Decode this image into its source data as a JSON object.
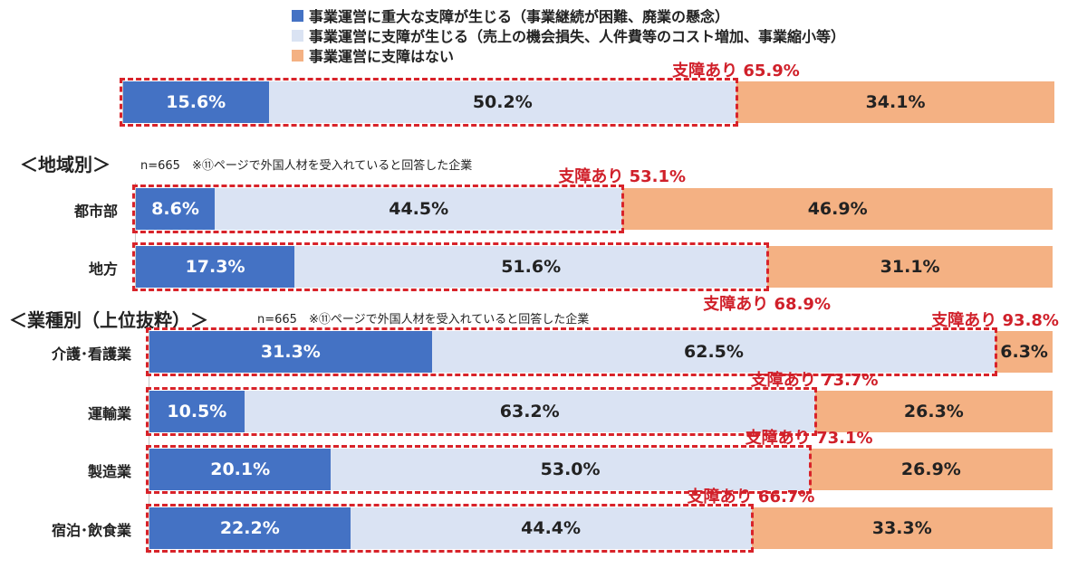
{
  "legend": [
    {
      "label": "事業運営に重大な支障が生じる（事業継続が困難、廃業の懸念）",
      "color": "#4472c4"
    },
    {
      "label": "事業運営に支障が生じる（売上の機会損失、人件費等のコスト増加、事業縮小等）",
      "color": "#dae3f3"
    },
    {
      "label": "事業運営に支障はない",
      "color": "#f4b183"
    }
  ],
  "sections": {
    "region": {
      "title": "＜地域別＞",
      "note": "n=665　※⑪ページで外国人材を受入れていると回答した企業"
    },
    "industry": {
      "title": "＜業種別（上位抜粋）＞",
      "note": "n=665　※⑪ページで外国人材を受入れていると回答した企業"
    }
  },
  "chart_data": {
    "type": "bar",
    "stacked": true,
    "orientation": "horizontal",
    "series_names": [
      "事業運営に重大な支障が生じる（事業継続が困難、廃業の懸念）",
      "事業運営に支障が生じる（売上の機会損失、人件費等のコスト増加、事業縮小等）",
      "事業運営に支障はない"
    ],
    "rows": [
      {
        "label": "",
        "values": [
          15.6,
          50.2,
          34.1
        ],
        "value_labels": [
          "15.6%",
          "50.2%",
          "34.1%"
        ],
        "annotation": "支障あり  65.9%"
      },
      {
        "label": "都市部",
        "values": [
          8.6,
          44.5,
          46.9
        ],
        "value_labels": [
          "8.6%",
          "44.5%",
          "46.9%"
        ],
        "annotation": "支障あり  53.1%"
      },
      {
        "label": "地方",
        "values": [
          17.3,
          51.6,
          31.1
        ],
        "value_labels": [
          "17.3%",
          "51.6%",
          "31.1%"
        ],
        "annotation": "支障あり  68.9%"
      },
      {
        "label": "介護･看護業",
        "values": [
          31.3,
          62.5,
          6.3
        ],
        "value_labels": [
          "31.3%",
          "62.5%",
          "6.3%"
        ],
        "annotation": "支障あり  93.8%"
      },
      {
        "label": "運輸業",
        "values": [
          10.5,
          63.2,
          26.3
        ],
        "value_labels": [
          "10.5%",
          "63.2%",
          "26.3%"
        ],
        "annotation": "支障あり  73.7%"
      },
      {
        "label": "製造業",
        "values": [
          20.1,
          53.0,
          26.9
        ],
        "value_labels": [
          "20.1%",
          "53.0%",
          "26.9%"
        ],
        "annotation": "支障あり  73.1%"
      },
      {
        "label": "宿泊･飲食業",
        "values": [
          22.2,
          44.4,
          33.3
        ],
        "value_labels": [
          "22.2%",
          "44.4%",
          "33.3%"
        ],
        "annotation": "支障あり  66.7%"
      }
    ],
    "colors": [
      "#4472c4",
      "#dae3f3",
      "#f4b183"
    ],
    "highlight_color": "#d8232a",
    "xlim": [
      0,
      100
    ]
  }
}
